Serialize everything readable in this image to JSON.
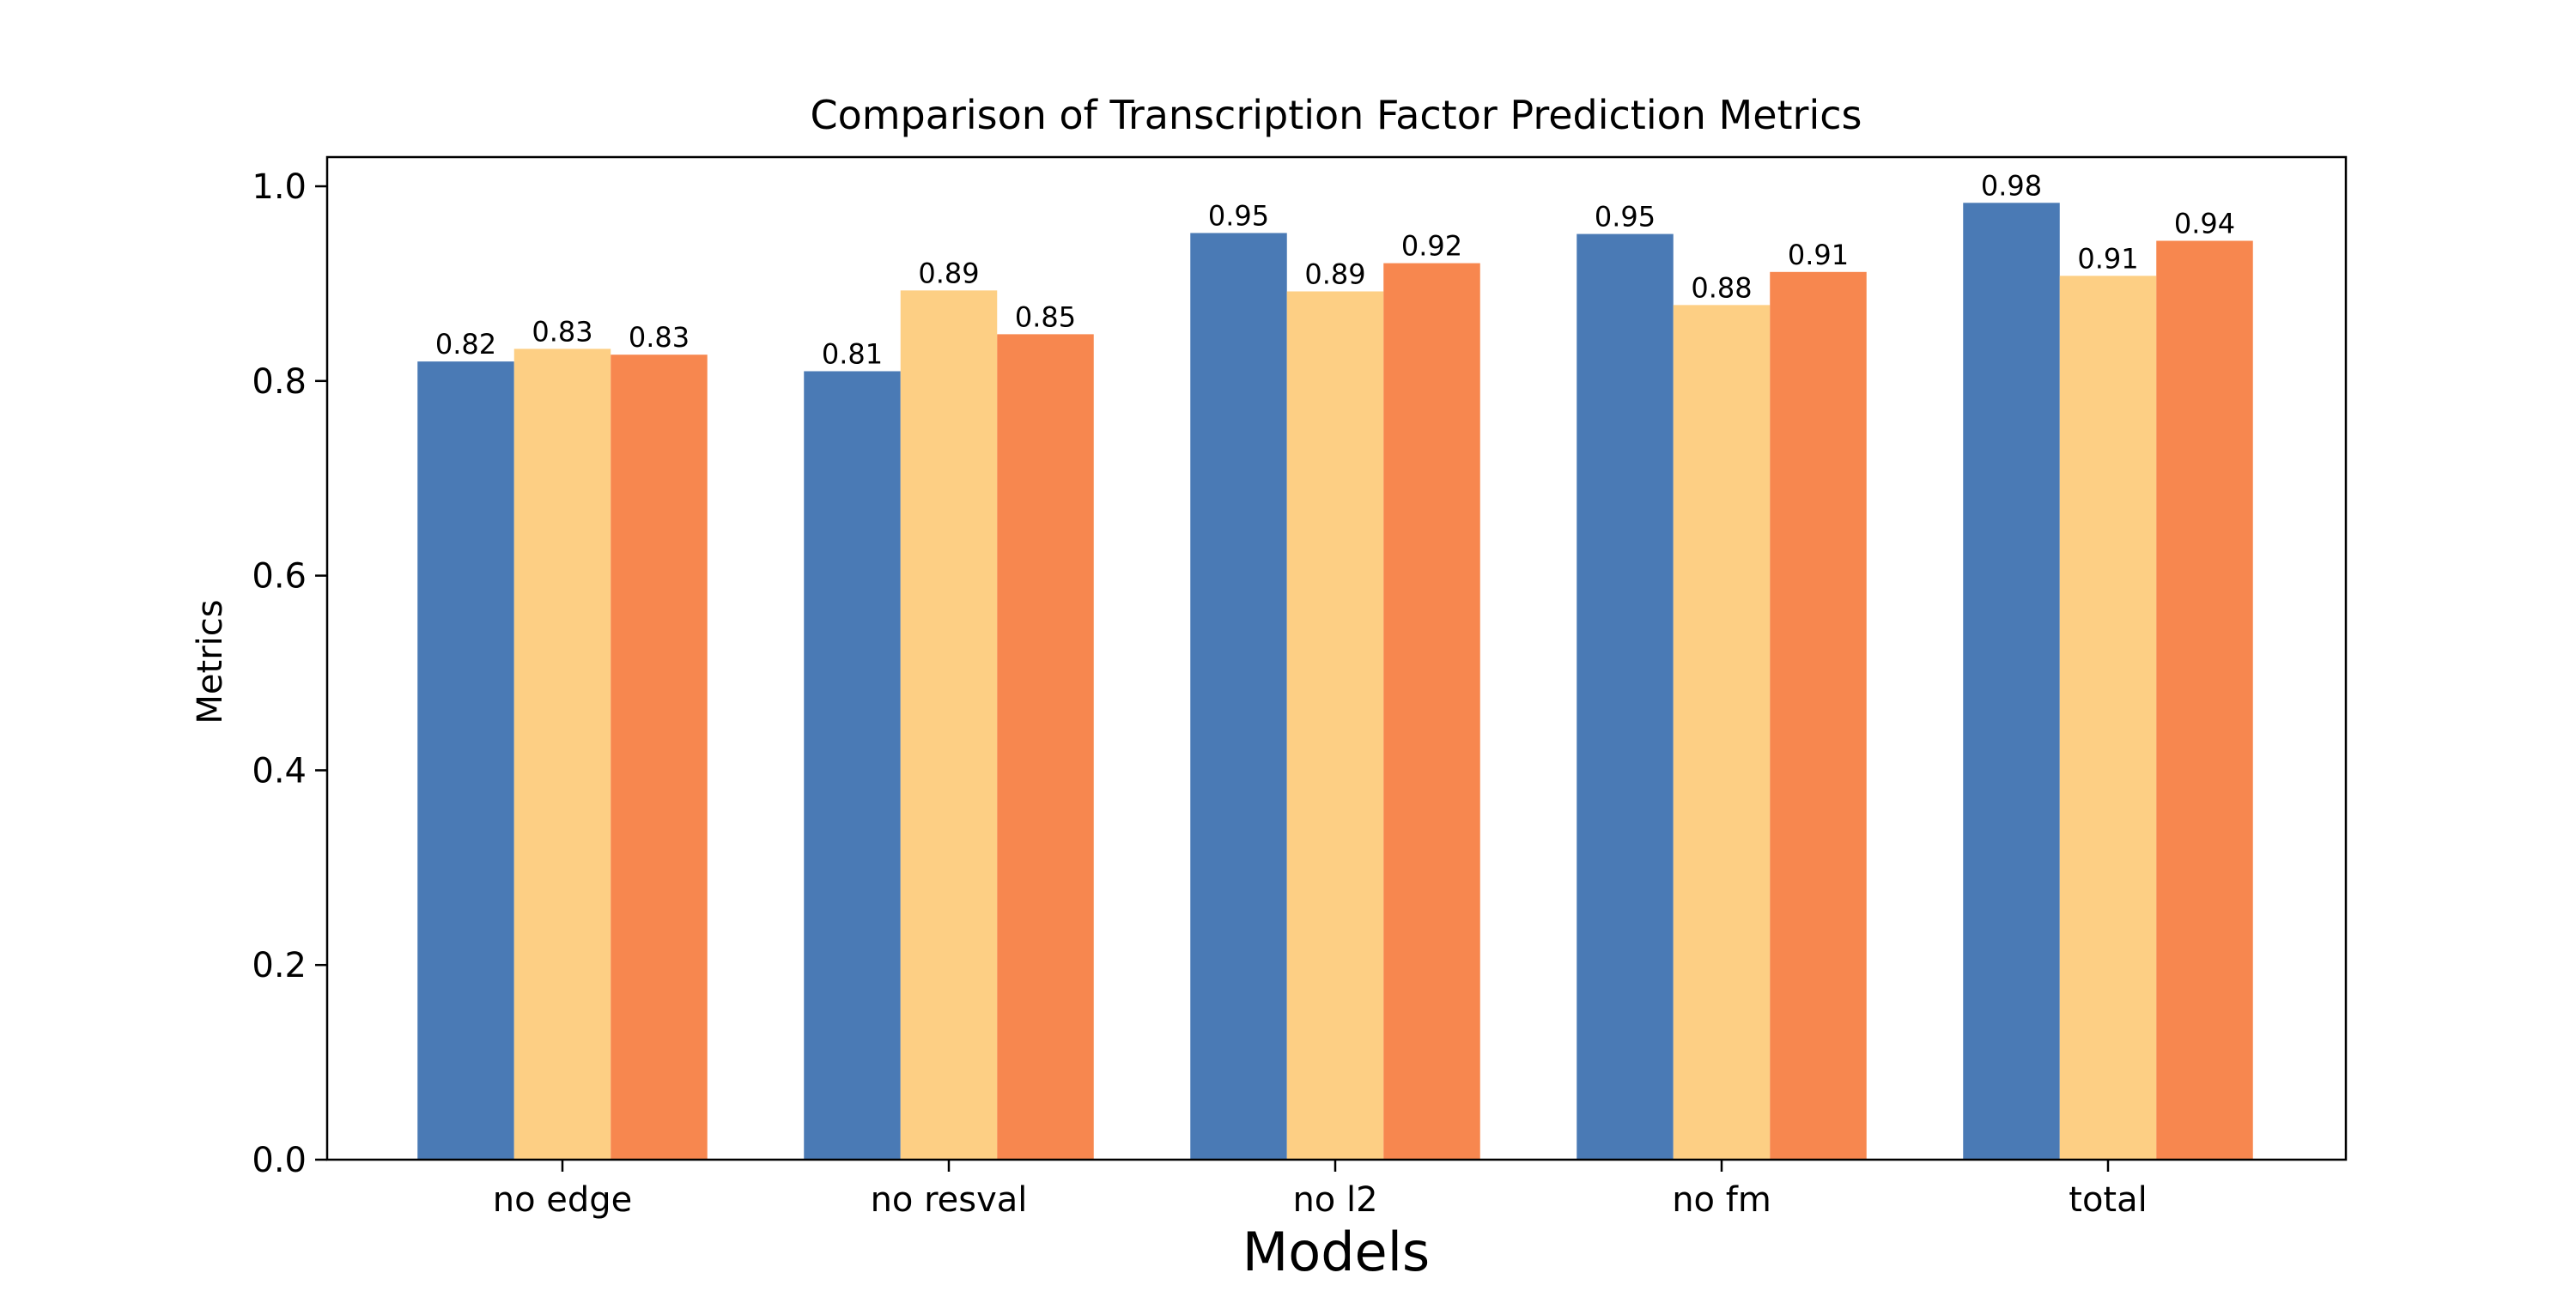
{
  "chart_data": {
    "type": "bar",
    "title": "Comparison of Transcription Factor Prediction Metrics",
    "xlabel": "Models",
    "ylabel": "Metrics",
    "categories": [
      "no edge",
      "no resval",
      "no l2",
      "no fm",
      "total"
    ],
    "series": [
      {
        "color": "#4a7ab5",
        "values": [
          0.82,
          0.81,
          0.952,
          0.951,
          0.983
        ],
        "labels": [
          "0.82",
          "0.81",
          "0.95",
          "0.95",
          "0.98"
        ]
      },
      {
        "color": "#fdcf84",
        "values": [
          0.833,
          0.893,
          0.892,
          0.878,
          0.908
        ],
        "labels": [
          "0.83",
          "0.89",
          "0.89",
          "0.88",
          "0.91"
        ]
      },
      {
        "color": "#f7874f",
        "values": [
          0.827,
          0.848,
          0.921,
          0.912,
          0.944
        ],
        "labels": [
          "0.83",
          "0.85",
          "0.92",
          "0.91",
          "0.94"
        ]
      }
    ],
    "ylim": [
      0,
      1.03
    ],
    "yticks": [
      "0.0",
      "0.2",
      "0.4",
      "0.6",
      "0.8",
      "1.0"
    ],
    "ytick_values": [
      0.0,
      0.2,
      0.4,
      0.6,
      0.8,
      1.0
    ],
    "grid": false,
    "legend": "none"
  }
}
